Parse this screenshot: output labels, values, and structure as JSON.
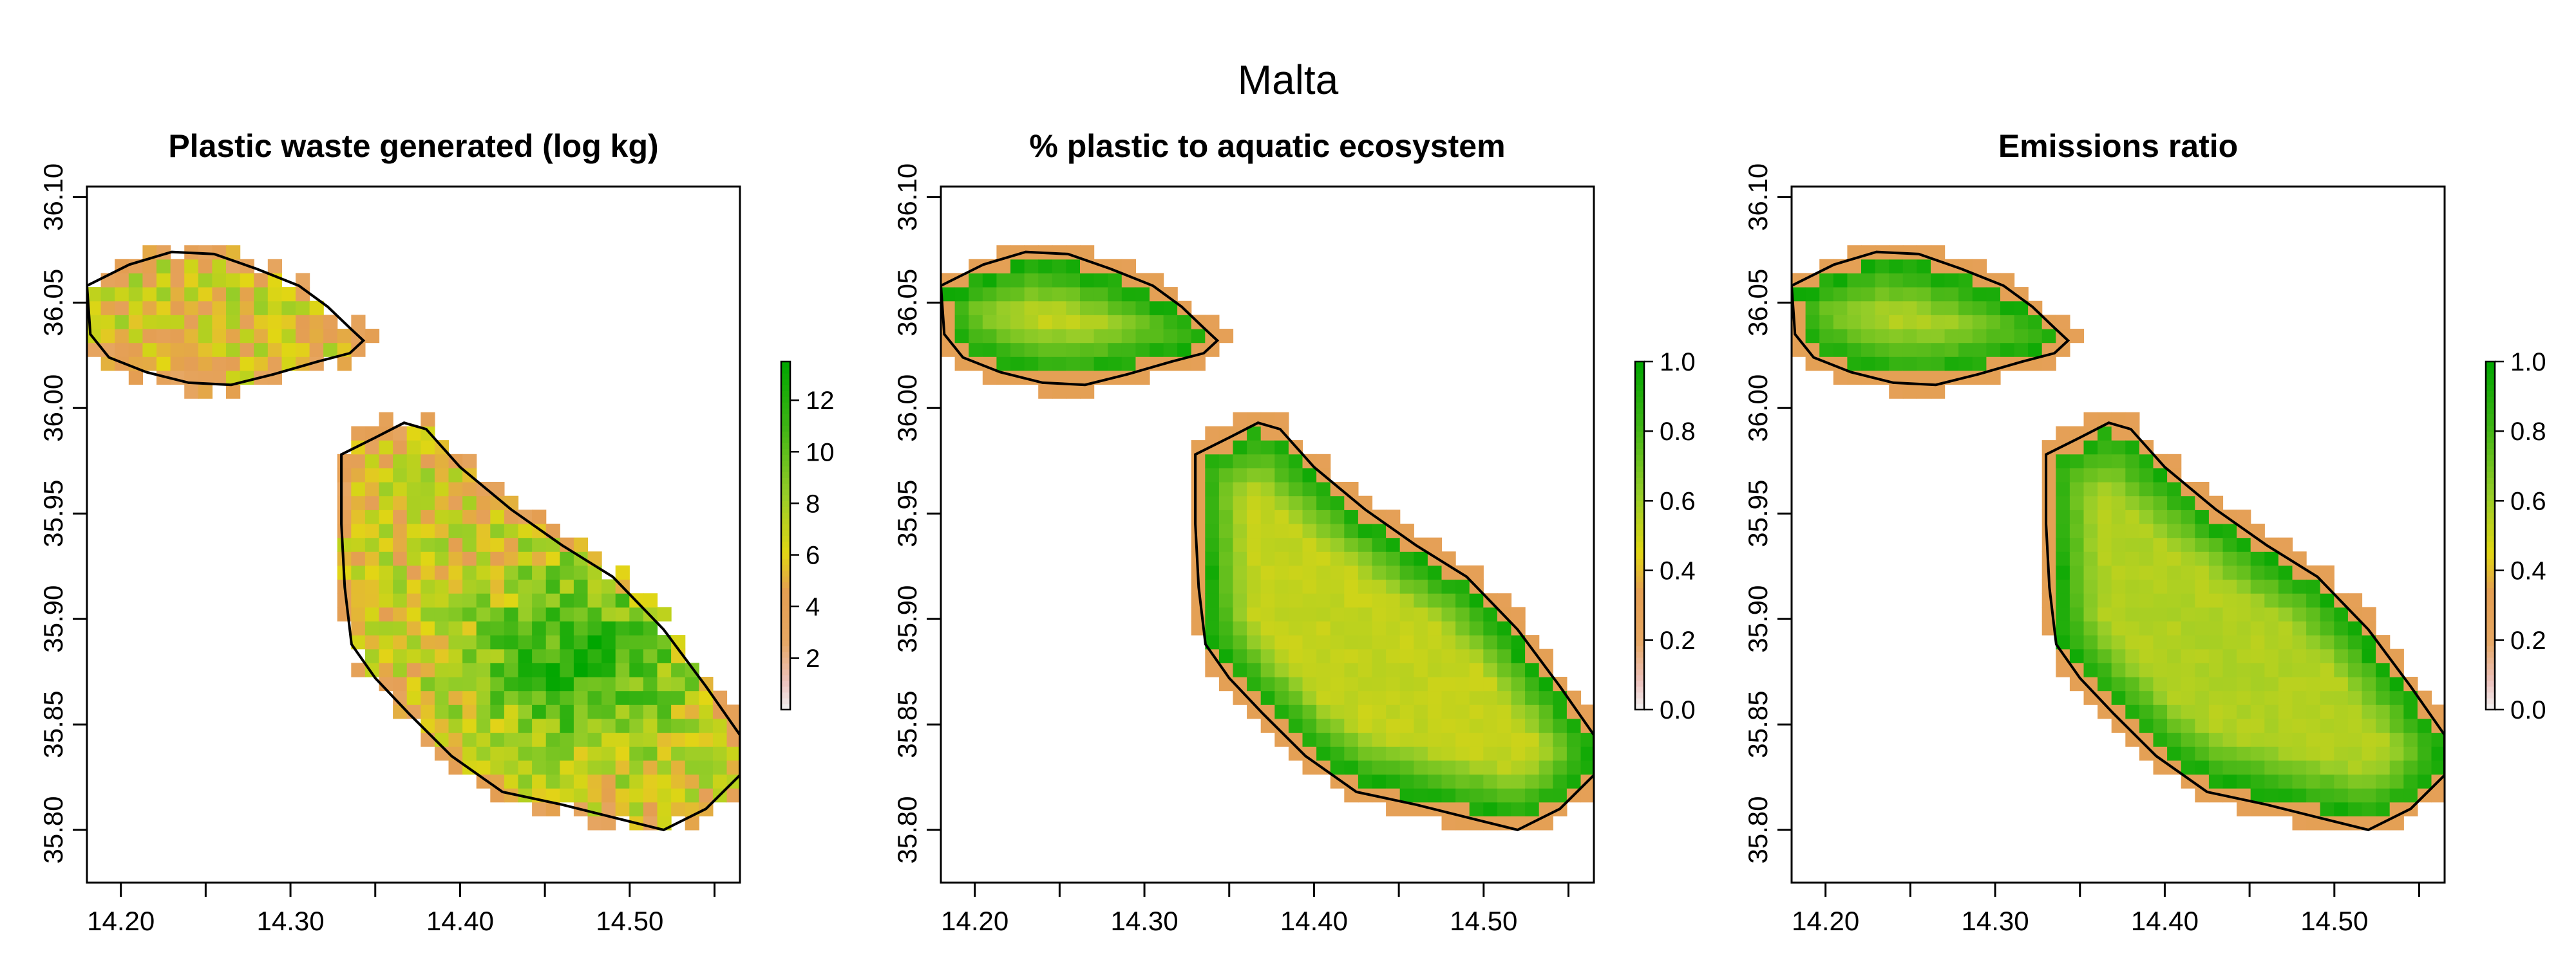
{
  "figure": {
    "title": "Malta"
  },
  "chart_data": [
    {
      "type": "heatmap",
      "title": "Plastic waste generated (log kg)",
      "x_ticks": [
        "14.20",
        "14.30",
        "14.40",
        "14.50"
      ],
      "y_ticks": [
        "35.80",
        "35.85",
        "35.90",
        "35.95",
        "36.00",
        "36.05",
        "36.10"
      ],
      "x_range": [
        14.18,
        14.565
      ],
      "y_range": [
        35.775,
        36.105
      ],
      "colorbar": {
        "ticks": [
          "2",
          "4",
          "6",
          "8",
          "10",
          "12"
        ],
        "range": [
          0,
          13.5
        ]
      },
      "value_pattern": "mixed values mostly 6-13, highest (green) in the east-central part of Malta, lower (yellow/orange) along the south-west coast",
      "outline": "coastline polygons of Gozo and Malta"
    },
    {
      "type": "heatmap",
      "title": "% plastic to aquatic ecosystem",
      "x_ticks": [
        "14.20",
        "14.30",
        "14.40",
        "14.50"
      ],
      "y_ticks": [
        "35.80",
        "35.85",
        "35.90",
        "35.95",
        "36.00",
        "36.05",
        "36.10"
      ],
      "x_range": [
        14.18,
        14.565
      ],
      "y_range": [
        35.775,
        36.105
      ],
      "colorbar": {
        "ticks": [
          "0.0",
          "0.2",
          "0.4",
          "0.6",
          "0.8",
          "1.0"
        ],
        "range": [
          0,
          1
        ]
      },
      "value_pattern": "about 0.3 (orange) in the outer coastal cells, about 1.0 (green) in a ring inside, falling to about 0.5 (yellow) in the interior",
      "outline": "coastline polygons of Gozo and Malta"
    },
    {
      "type": "heatmap",
      "title": "Emissions ratio",
      "x_ticks": [
        "14.20",
        "14.30",
        "14.40",
        "14.50"
      ],
      "y_ticks": [
        "35.80",
        "35.85",
        "35.90",
        "35.95",
        "36.00",
        "36.05",
        "36.10"
      ],
      "x_range": [
        14.18,
        14.565
      ],
      "y_range": [
        35.775,
        36.105
      ],
      "colorbar": {
        "ticks": [
          "0.0",
          "0.2",
          "0.4",
          "0.6",
          "0.8",
          "1.0"
        ],
        "range": [
          0,
          1
        ]
      },
      "value_pattern": "about 0.3 (orange) in the outer coastal cells, about 1.0 (green) in a ring inside, falling to about 0.45 (yellow) in the interior",
      "outline": "coastline polygons of Gozo and Malta"
    }
  ]
}
